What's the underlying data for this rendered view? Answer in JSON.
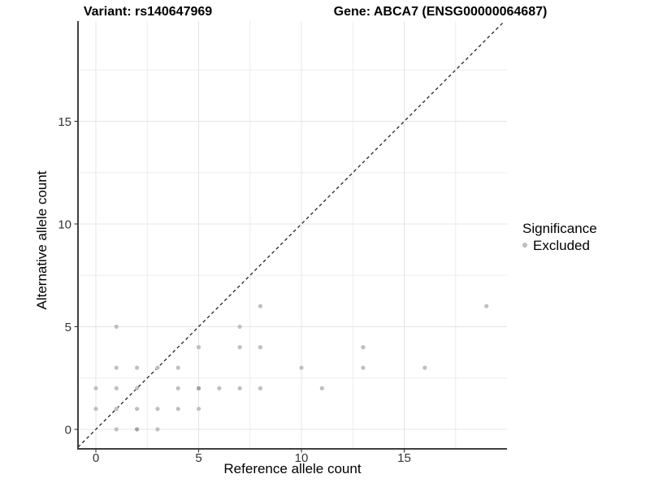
{
  "titles": {
    "left": "Variant: rs140647969",
    "right": "Gene: ABCA7 (ENSG00000064687)"
  },
  "legend": {
    "title": "Significance",
    "entries": [
      {
        "label": "Excluded",
        "marker": "circle",
        "marker_color": "#bfbfbf"
      }
    ]
  },
  "chart_data": {
    "type": "scatter",
    "title_left": "Variant: rs140647969",
    "title_right": "Gene: ABCA7 (ENSG00000064687)",
    "xlabel": "Reference allele count",
    "ylabel": "Alternative allele count",
    "x_ticks": [
      0,
      5,
      10,
      15
    ],
    "y_ticks": [
      0,
      5,
      10,
      15
    ],
    "x_minor_gridlines": [
      2.5,
      7.5,
      12.5,
      17.5
    ],
    "y_minor_gridlines": [
      2.5,
      7.5,
      12.5,
      17.5
    ],
    "xlim": [
      -0.87,
      20.0
    ],
    "ylim": [
      -0.95,
      19.88
    ],
    "grid": true,
    "legend_position": "right",
    "identity_line": {
      "equation": "y = x",
      "style": "dashed",
      "color": "#111111"
    },
    "series": [
      {
        "name": "Excluded",
        "color": "#bfbfbf",
        "overplot_color": "#a2a2a2",
        "points": [
          [
            0,
            1
          ],
          [
            0,
            2
          ],
          [
            1,
            0
          ],
          [
            1,
            1
          ],
          [
            1,
            2
          ],
          [
            1,
            3
          ],
          [
            1,
            5
          ],
          [
            2,
            0
          ],
          [
            2,
            1
          ],
          [
            2,
            2
          ],
          [
            2,
            3
          ],
          [
            3,
            0
          ],
          [
            3,
            1
          ],
          [
            3,
            3
          ],
          [
            4,
            1
          ],
          [
            4,
            2
          ],
          [
            4,
            3
          ],
          [
            5,
            1
          ],
          [
            5,
            2
          ],
          [
            5,
            4
          ],
          [
            6,
            2
          ],
          [
            7,
            2
          ],
          [
            7,
            4
          ],
          [
            7,
            5
          ],
          [
            8,
            2
          ],
          [
            8,
            4
          ],
          [
            8,
            6
          ],
          [
            10,
            3
          ],
          [
            11,
            2
          ],
          [
            13,
            3
          ],
          [
            13,
            4
          ],
          [
            16,
            3
          ],
          [
            19,
            6
          ]
        ],
        "overplotted_points": [
          [
            2,
            0
          ],
          [
            5,
            2
          ]
        ]
      }
    ]
  },
  "colors": {
    "background": "#ffffff",
    "grid_major": "#e4e4e4",
    "grid_minor": "#eeeeee",
    "axis_line": "#3f3f3f",
    "tick_mark": "#333333",
    "tick_text": "#333333",
    "title_text": "#000000"
  }
}
